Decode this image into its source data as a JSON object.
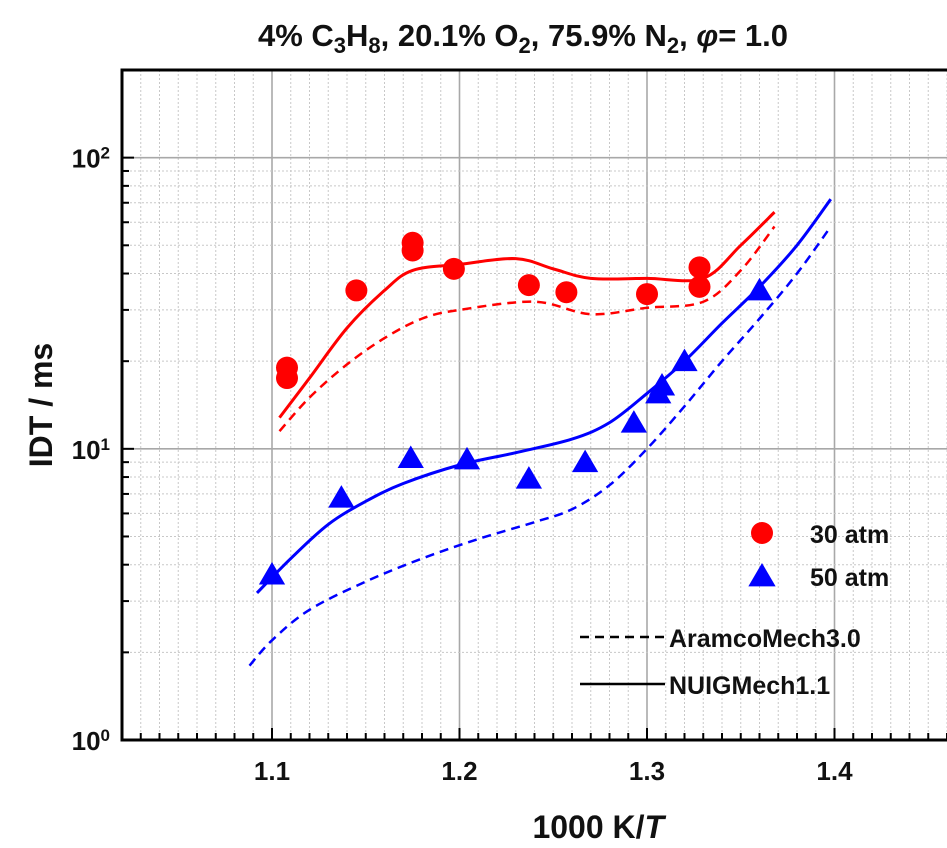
{
  "chart_data": {
    "type": "scatter",
    "title": {
      "parts": [
        {
          "t": "4% C",
          "sub": false
        },
        {
          "t": "3",
          "sub": true
        },
        {
          "t": "H",
          "sub": false
        },
        {
          "t": "8",
          "sub": true
        },
        {
          "t": ", 20.1% O",
          "sub": false
        },
        {
          "t": "2",
          "sub": true
        },
        {
          "t": ",  75.9% N",
          "sub": false
        },
        {
          "t": "2",
          "sub": true
        },
        {
          "t": ", ",
          "sub": false
        },
        {
          "t": "φ",
          "sub": false,
          "italic": true
        },
        {
          "t": "= 1.0",
          "sub": false
        }
      ]
    },
    "xlabel": {
      "prefix": "1000 K/",
      "italic": "T"
    },
    "ylabel": "IDT / ms",
    "xlim": [
      1.02,
      1.46
    ],
    "ylim": [
      1,
      200
    ],
    "yscale": "log",
    "x_ticks": [
      {
        "value": 1.1,
        "label": "1.1"
      },
      {
        "value": 1.2,
        "label": "1.2"
      },
      {
        "value": 1.3,
        "label": "1.3"
      },
      {
        "value": 1.4,
        "label": "1.4"
      }
    ],
    "y_ticks": [
      {
        "value": 1,
        "base": "10",
        "exp": "0"
      },
      {
        "value": 10,
        "base": "10",
        "exp": "1"
      },
      {
        "value": 100,
        "base": "10",
        "exp": "2"
      }
    ],
    "grid": true,
    "legend_position": "bottom-right",
    "series": [
      {
        "name": "30 atm",
        "kind": "points",
        "marker": "circle",
        "color": "#ff0000",
        "points": [
          [
            1.108,
            19.0
          ],
          [
            1.108,
            17.5
          ],
          [
            1.145,
            35.0
          ],
          [
            1.175,
            51.0
          ],
          [
            1.175,
            48.0
          ],
          [
            1.197,
            41.5
          ],
          [
            1.237,
            36.5
          ],
          [
            1.257,
            34.5
          ],
          [
            1.3,
            34.0
          ],
          [
            1.328,
            42.0
          ],
          [
            1.328,
            36.0
          ]
        ]
      },
      {
        "name": "50 atm",
        "kind": "points",
        "marker": "triangle",
        "color": "#0000ff",
        "points": [
          [
            1.1,
            3.7
          ],
          [
            1.137,
            6.8
          ],
          [
            1.174,
            9.3
          ],
          [
            1.204,
            9.2
          ],
          [
            1.237,
            7.9
          ],
          [
            1.267,
            9.0
          ],
          [
            1.293,
            12.3
          ],
          [
            1.306,
            15.5
          ],
          [
            1.308,
            16.5
          ],
          [
            1.32,
            20.0
          ],
          [
            1.36,
            35.0
          ]
        ]
      },
      {
        "name": "NUIGMech1.1",
        "kind": "line",
        "style": "solid",
        "color": "#ff0000",
        "points": [
          [
            1.104,
            12.8
          ],
          [
            1.12,
            17.5
          ],
          [
            1.14,
            26.0
          ],
          [
            1.16,
            35.0
          ],
          [
            1.175,
            41.0
          ],
          [
            1.2,
            43.0
          ],
          [
            1.23,
            45.0
          ],
          [
            1.25,
            41.5
          ],
          [
            1.27,
            38.5
          ],
          [
            1.3,
            38.5
          ],
          [
            1.33,
            38.5
          ],
          [
            1.35,
            50.0
          ],
          [
            1.368,
            65.0
          ]
        ]
      },
      {
        "name": "AramcoMech3.0",
        "kind": "line",
        "style": "dashed",
        "color": "#ff0000",
        "points": [
          [
            1.104,
            11.5
          ],
          [
            1.12,
            15.0
          ],
          [
            1.14,
            19.5
          ],
          [
            1.16,
            24.0
          ],
          [
            1.18,
            28.0
          ],
          [
            1.2,
            30.0
          ],
          [
            1.24,
            32.0
          ],
          [
            1.27,
            29.0
          ],
          [
            1.3,
            30.5
          ],
          [
            1.33,
            32.0
          ],
          [
            1.35,
            41.0
          ],
          [
            1.368,
            58.0
          ]
        ]
      },
      {
        "name": "NUIGMech1.1",
        "kind": "line",
        "style": "solid",
        "color": "#0000ff",
        "points": [
          [
            1.092,
            3.2
          ],
          [
            1.11,
            4.2
          ],
          [
            1.13,
            5.5
          ],
          [
            1.15,
            6.6
          ],
          [
            1.17,
            7.6
          ],
          [
            1.2,
            8.8
          ],
          [
            1.23,
            9.7
          ],
          [
            1.26,
            10.8
          ],
          [
            1.28,
            12.3
          ],
          [
            1.3,
            15.5
          ],
          [
            1.32,
            20.0
          ],
          [
            1.34,
            27.0
          ],
          [
            1.36,
            36.0
          ],
          [
            1.38,
            50.0
          ],
          [
            1.398,
            72.0
          ]
        ]
      },
      {
        "name": "AramcoMech3.0",
        "kind": "line",
        "style": "dashed",
        "color": "#0000ff",
        "points": [
          [
            1.088,
            1.8
          ],
          [
            1.1,
            2.2
          ],
          [
            1.12,
            2.8
          ],
          [
            1.15,
            3.5
          ],
          [
            1.18,
            4.2
          ],
          [
            1.21,
            4.9
          ],
          [
            1.24,
            5.6
          ],
          [
            1.26,
            6.2
          ],
          [
            1.28,
            7.5
          ],
          [
            1.3,
            10.0
          ],
          [
            1.32,
            14.0
          ],
          [
            1.34,
            20.0
          ],
          [
            1.36,
            28.0
          ],
          [
            1.38,
            40.0
          ],
          [
            1.398,
            58.0
          ]
        ]
      }
    ],
    "legend": [
      {
        "label": "30 atm",
        "symbol": "circle",
        "color": "#ff0000"
      },
      {
        "label": "50 atm",
        "symbol": "triangle",
        "color": "#0000ff"
      },
      {
        "label": "AramcoMech3.0",
        "symbol": "dashed",
        "color": "#000000"
      },
      {
        "label": "NUIGMech1.1",
        "symbol": "solid",
        "color": "#000000"
      }
    ]
  }
}
